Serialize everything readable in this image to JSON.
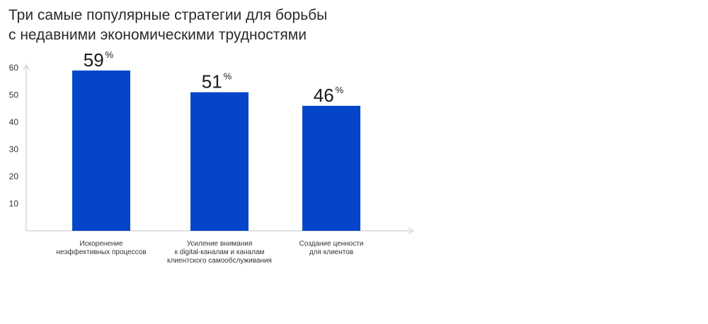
{
  "chart_data": {
    "type": "bar",
    "title_lines": [
      "Три самые популярные стратегии для борьбы",
      "с недавними экономическими трудностями"
    ],
    "categories": [
      [
        "Искоренение",
        "неэффективных процессов"
      ],
      [
        "Усиление внимания",
        "к digital-каналам и каналам",
        "клиентского самообслуживания"
      ],
      [
        "Создание ценности",
        "для клиентов"
      ]
    ],
    "values": [
      59,
      51,
      46
    ],
    "value_suffix": "%",
    "yticks": [
      10,
      20,
      30,
      40,
      50,
      60
    ],
    "ylim": [
      0,
      70
    ],
    "bar_color": "#0546c8",
    "axis_color": "#d9d9d9",
    "grid": false,
    "legend": "none"
  }
}
